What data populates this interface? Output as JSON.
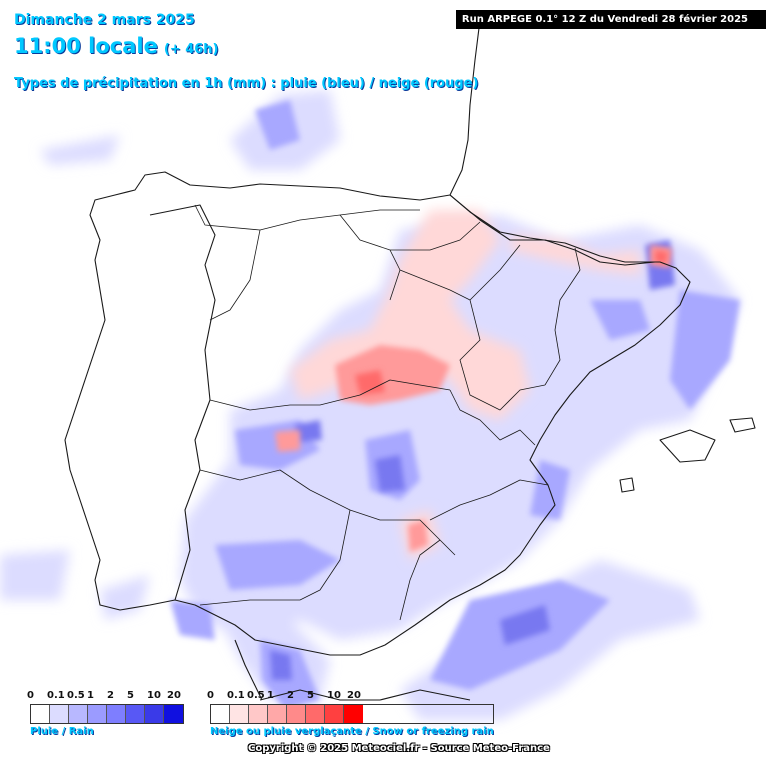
{
  "header": {
    "date": "Dimanche 2 mars 2025",
    "hour": "11:00 locale",
    "lead": "(+ 46h)",
    "precip_type": "Types de précipitation en 1h (mm) : pluie (bleu) / neige (rouge)",
    "run": "Run ARPEGE 0.1° 12 Z du Vendredi 28 février 2025"
  },
  "legend": {
    "rain": {
      "ticks": [
        "0",
        "0.1",
        "0.5",
        "1",
        "2",
        "5",
        "10",
        "20"
      ],
      "colors": [
        "#ffffff",
        "#dcdcff",
        "#b8b8ff",
        "#9b9bff",
        "#7e7eff",
        "#5858f5",
        "#3a3ae8",
        "#1010e0"
      ],
      "caption": "Pluie / Rain"
    },
    "snow": {
      "ticks": [
        "0",
        "0.1",
        "0.5",
        "1",
        "2",
        "5",
        "10",
        "20"
      ],
      "colors": [
        "#ffffff",
        "#ffe4e4",
        "#ffc8c8",
        "#ffa8a8",
        "#ff8a8a",
        "#ff6a6a",
        "#ff4040",
        "#ff0000"
      ],
      "caption": "Neige ou pluie verglaçante / Snow or freezing rain"
    }
  },
  "footer": {
    "copyright": "Copyright © 2025 Meteociel.fr - Source Meteo-France"
  },
  "colors": {
    "title": "#00c8ff",
    "rain_light": "#dcdcff",
    "rain_mid": "#9b9bff",
    "rain_strong": "#5858f5",
    "snow_light": "#ffd8d8",
    "snow_mid": "#ff9a9a",
    "snow_strong": "#ff4040"
  }
}
